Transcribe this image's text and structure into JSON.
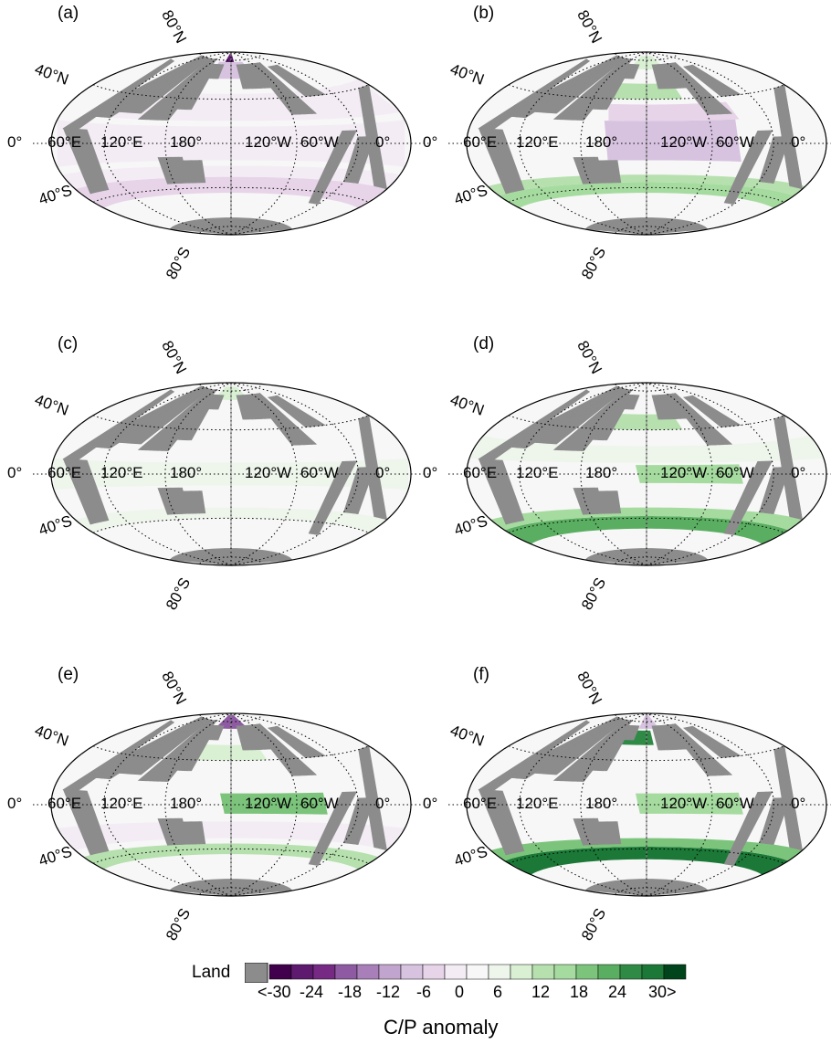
{
  "panels": [
    {
      "id": "a",
      "label": "(a)",
      "scheme": "a"
    },
    {
      "id": "b",
      "label": "(b)",
      "scheme": "b"
    },
    {
      "id": "c",
      "label": "(c)",
      "scheme": "c"
    },
    {
      "id": "d",
      "label": "(d)",
      "scheme": "d"
    },
    {
      "id": "e",
      "label": "(e)",
      "scheme": "e"
    },
    {
      "id": "f",
      "label": "(f)",
      "scheme": "f"
    }
  ],
  "lat_labels": {
    "n80": "80°N",
    "n40": "40°N",
    "eq": "0°",
    "s40": "40°S",
    "s80": "80°S"
  },
  "lon_labels": {
    "e60": "60°E",
    "e120": "120°E",
    "d180": "180°",
    "w120": "120°W",
    "w60": "60°W",
    "zero": "0°"
  },
  "colorbar": {
    "land_label": "Land",
    "land_color": "#8c8c8c",
    "colors": [
      "#40004b",
      "#5e1a6e",
      "#762a83",
      "#8e5ba2",
      "#a97fba",
      "#c2a5cf",
      "#d7c3e0",
      "#e7d4e8",
      "#f3ecf4",
      "#f7f7f7",
      "#eef6ec",
      "#d9f0d3",
      "#b6e0ae",
      "#a6dba0",
      "#7cc47c",
      "#5aae61",
      "#2f8a45",
      "#1b7837",
      "#00441b"
    ],
    "ticks": [
      "<-30",
      "-24",
      "-18",
      "-12",
      "-6",
      "0",
      "6",
      "12",
      "18",
      "24",
      "30>"
    ],
    "title": "C/P anomaly"
  }
}
